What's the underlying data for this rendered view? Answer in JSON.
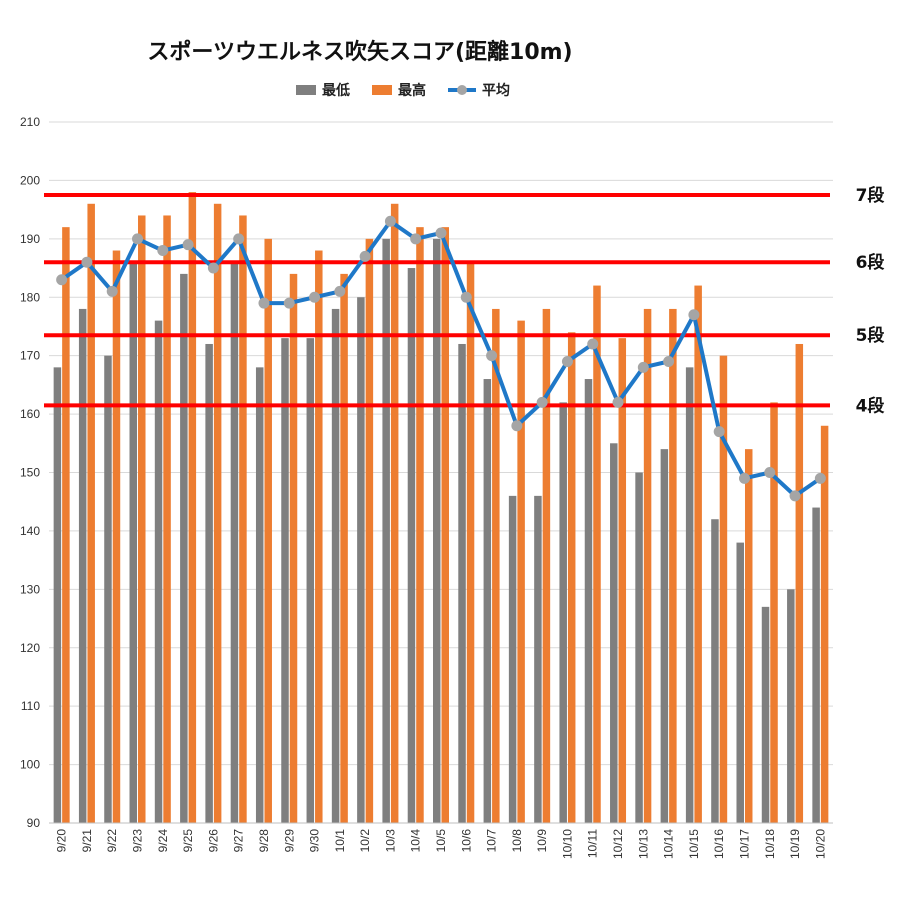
{
  "chart_data": {
    "type": "bar",
    "title": "スポーツウエルネス吹矢スコア(距離10m)",
    "categories": [
      "9/20",
      "9/21",
      "9/22",
      "9/23",
      "9/24",
      "9/25",
      "9/26",
      "9/27",
      "9/28",
      "9/29",
      "9/30",
      "10/1",
      "10/2",
      "10/3",
      "10/4",
      "10/5",
      "10/6",
      "10/7",
      "10/8",
      "10/9",
      "10/10",
      "10/11",
      "10/12",
      "10/13",
      "10/14",
      "10/15",
      "10/16",
      "10/17",
      "10/18",
      "10/19",
      "10/20"
    ],
    "series": [
      {
        "name": "最低",
        "type": "bar",
        "color": "#7f7f7f",
        "values": [
          168,
          178,
          170,
          186,
          176,
          184,
          172,
          186,
          168,
          173,
          173,
          178,
          180,
          190,
          185,
          190,
          172,
          166,
          146,
          146,
          162,
          166,
          155,
          150,
          154,
          168,
          142,
          138,
          127,
          130,
          144
        ]
      },
      {
        "name": "最高",
        "type": "bar",
        "color": "#ed7d31",
        "values": [
          192,
          196,
          188,
          194,
          194,
          198,
          196,
          194,
          190,
          184,
          188,
          184,
          190,
          196,
          192,
          192,
          186,
          178,
          176,
          178,
          174,
          182,
          173,
          178,
          178,
          182,
          170,
          154,
          162,
          172,
          158
        ]
      },
      {
        "name": "平均",
        "type": "line",
        "color": "#1f78c8",
        "marker_color": "#a5a5a5",
        "values": [
          183,
          186,
          181,
          190,
          188,
          189,
          185,
          190,
          179,
          179,
          180,
          181,
          187,
          193,
          190,
          191,
          180,
          170,
          158,
          162,
          169,
          172,
          162,
          168,
          169,
          177,
          157,
          149,
          150,
          146,
          149
        ]
      }
    ],
    "ylim": [
      90,
      210
    ],
    "yticks": [
      90,
      100,
      110,
      120,
      130,
      140,
      150,
      160,
      170,
      180,
      190,
      200,
      210
    ],
    "grid": true,
    "legend_position": "top",
    "reference_lines": [
      {
        "label": "7段",
        "value": 197.5,
        "color": "#ff0000"
      },
      {
        "label": "6段",
        "value": 186,
        "color": "#ff0000"
      },
      {
        "label": "5段",
        "value": 173.5,
        "color": "#ff0000"
      },
      {
        "label": "4段",
        "value": 161.5,
        "color": "#ff0000"
      }
    ]
  }
}
